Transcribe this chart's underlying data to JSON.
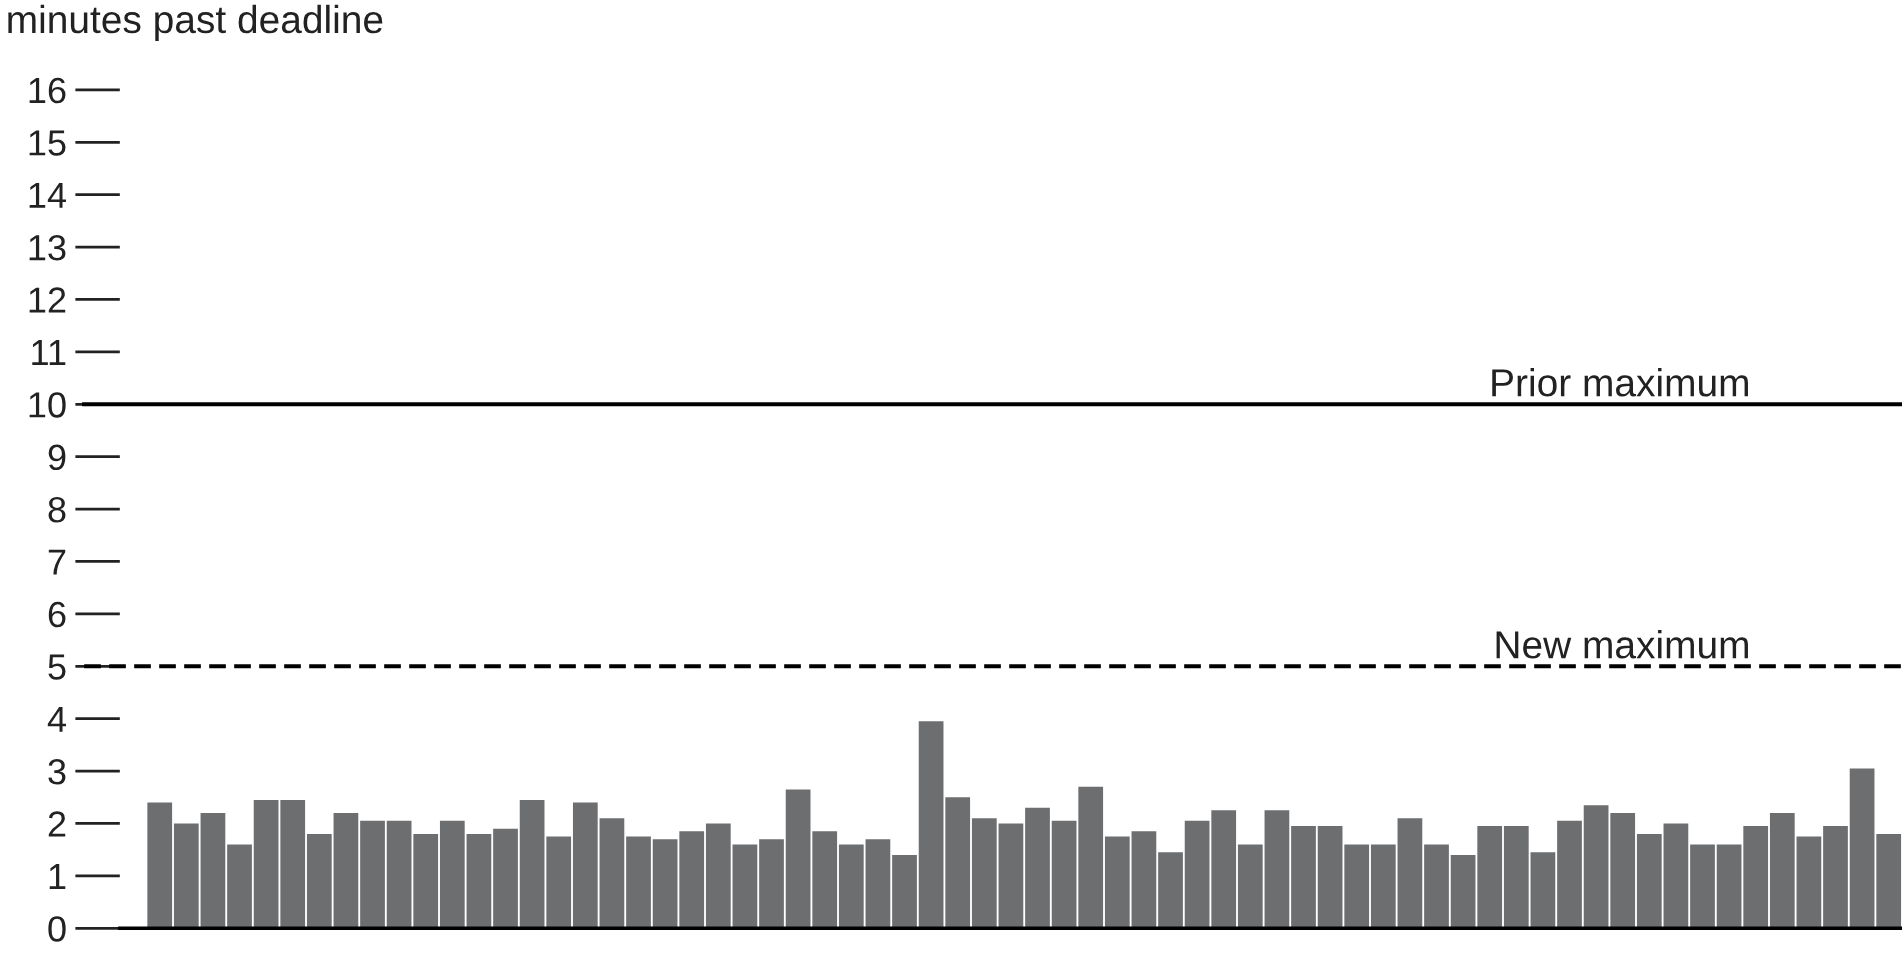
{
  "chart_data": {
    "type": "bar",
    "ylabel": "minutes past deadline",
    "categories": [
      null,
      null,
      null,
      null,
      null,
      null,
      null,
      null,
      null,
      null,
      null,
      null,
      null,
      null,
      null,
      null,
      null,
      null,
      null,
      null,
      null,
      null,
      null,
      null,
      null,
      null,
      null,
      null,
      null,
      null,
      null,
      null,
      null,
      null,
      null,
      null,
      null,
      null,
      null,
      null,
      null,
      null,
      null,
      null,
      null,
      null,
      null,
      null,
      null,
      null,
      null,
      null,
      null,
      null,
      null,
      null,
      null,
      null,
      null,
      null,
      null,
      null,
      null,
      null,
      null,
      null
    ],
    "values": [
      2.4,
      2.0,
      2.2,
      1.6,
      2.45,
      2.45,
      1.8,
      2.2,
      2.05,
      2.05,
      1.8,
      2.05,
      1.8,
      1.9,
      2.45,
      1.75,
      2.4,
      2.1,
      1.75,
      1.7,
      1.85,
      2.0,
      1.6,
      1.7,
      2.65,
      1.85,
      1.6,
      1.7,
      1.4,
      3.95,
      2.5,
      2.1,
      2.0,
      2.3,
      2.05,
      2.7,
      1.75,
      1.85,
      1.45,
      2.05,
      2.25,
      1.6,
      2.25,
      1.95,
      1.95,
      1.6,
      1.6,
      2.1,
      1.6,
      1.4,
      1.95,
      1.95,
      1.45,
      2.05,
      2.35,
      2.2,
      1.8,
      2.0,
      1.6,
      1.6,
      1.95,
      2.2,
      1.75,
      1.95,
      3.05,
      1.8
    ],
    "color": "#6d6e70",
    "ylim": [
      0,
      16
    ],
    "yticks": [
      0,
      1,
      2,
      3,
      4,
      5,
      6,
      7,
      8,
      9,
      10,
      11,
      12,
      13,
      14,
      15,
      16
    ],
    "ref_lines": [
      {
        "axis": "y",
        "value": 10,
        "label": "Prior maximum",
        "line_style": "solid",
        "color": "#000000"
      },
      {
        "axis": "y",
        "value": 5,
        "label": "New maximum",
        "line_style": "dashed",
        "color": "#000000"
      }
    ],
    "grid": false,
    "legend": false
  }
}
